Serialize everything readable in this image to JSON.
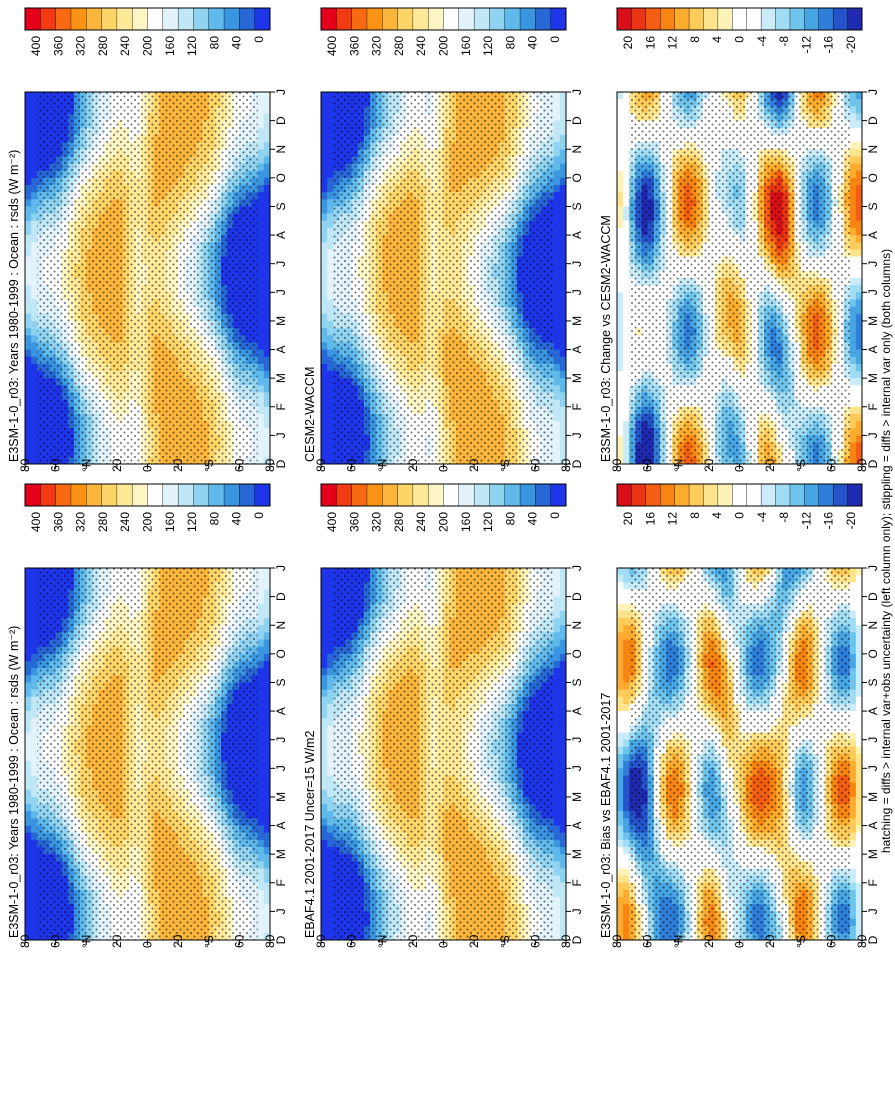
{
  "footnote": "hatching = diffs > internal var+obs uncertainty (left column only); stippling = diffs > internal var only (both columns)",
  "months": [
    "D",
    "J",
    "F",
    "M",
    "A",
    "M",
    "J",
    "J",
    "A",
    "S",
    "O",
    "N",
    "D",
    "J"
  ],
  "lat_ticks": [
    "80",
    "60",
    "°N",
    "20",
    "0",
    "20",
    "°S",
    "60",
    "80"
  ],
  "abs_cbar_ticks": [
    "400",
    "360",
    "320",
    "280",
    "240",
    "200",
    "160",
    "120",
    "80",
    "40",
    "0"
  ],
  "diff_cbar_ticks": [
    "20",
    "16",
    "12",
    "8",
    "4",
    "0",
    "-4",
    "-8",
    "-12",
    "-16",
    "-20"
  ],
  "abs_colors": [
    "#e5001b",
    "#f23a13",
    "#f86a12",
    "#fa9314",
    "#fbb53c",
    "#fcd468",
    "#fde998",
    "#fdf6c4",
    "#ffffff",
    "#e3f3fb",
    "#bfe7f6",
    "#8fd3f1",
    "#5fb9ea",
    "#3a96e0",
    "#2767d6",
    "#1e35ea"
  ],
  "diff_colors": [
    "#d70f18",
    "#ea3515",
    "#f45e12",
    "#f88512",
    "#fbac2e",
    "#fccb5a",
    "#fde38a",
    "#fdf2b8",
    "#ffffff",
    "#ffffff",
    "#c9ecf8",
    "#a0dcf3",
    "#6fc4ec",
    "#47a5e4",
    "#2f7ed9",
    "#2453cc",
    "#1f2ab0"
  ],
  "chart_data": [
    {
      "type": "heatmap",
      "panel": "left-top",
      "title": "E3SM-1-0_r03: Years 1980-1999 : Ocean : rsds (W m⁻²)",
      "x": [
        "D",
        "J",
        "F",
        "M",
        "A",
        "M",
        "J",
        "J",
        "A",
        "S",
        "O",
        "N",
        "D",
        "J"
      ],
      "y_labels": [
        "80",
        "60",
        "°N",
        "20",
        "0",
        "20",
        "°S",
        "60",
        "80"
      ],
      "zlim": [
        0,
        400
      ],
      "units": "W m⁻²"
    },
    {
      "type": "heatmap",
      "panel": "left-middle",
      "title": "EBAF4.1 2001-2017 Uncer=15 W/m2",
      "x": [
        "D",
        "J",
        "F",
        "M",
        "A",
        "M",
        "J",
        "J",
        "A",
        "S",
        "O",
        "N",
        "D",
        "J"
      ],
      "y_labels": [
        "80",
        "60",
        "°N",
        "20",
        "0",
        "20",
        "°S",
        "60",
        "80"
      ],
      "zlim": [
        0,
        400
      ],
      "units": "W m⁻²"
    },
    {
      "type": "heatmap",
      "panel": "left-bottom",
      "title": "E3SM-1-0_r03: Bias vs EBAF4.1 2001-2017",
      "x": [
        "D",
        "J",
        "F",
        "M",
        "A",
        "M",
        "J",
        "J",
        "A",
        "S",
        "O",
        "N",
        "D",
        "J"
      ],
      "y_labels": [
        "80",
        "60",
        "°N",
        "20",
        "0",
        "20",
        "°S",
        "60",
        "80"
      ],
      "zlim": [
        -20,
        20
      ],
      "units": "W m⁻²"
    },
    {
      "type": "heatmap",
      "panel": "right-top",
      "title": "E3SM-1-0_r03: Years 1980-1999 : Ocean : rsds (W m⁻²)",
      "x": [
        "D",
        "J",
        "F",
        "M",
        "A",
        "M",
        "J",
        "J",
        "A",
        "S",
        "O",
        "N",
        "D",
        "J"
      ],
      "y_labels": [
        "80",
        "60",
        "°N",
        "20",
        "0",
        "20",
        "°S",
        "60",
        "80"
      ],
      "zlim": [
        0,
        400
      ],
      "units": "W m⁻²"
    },
    {
      "type": "heatmap",
      "panel": "right-middle",
      "title": "CESM2-WACCM",
      "x": [
        "D",
        "J",
        "F",
        "M",
        "A",
        "M",
        "J",
        "J",
        "A",
        "S",
        "O",
        "N",
        "D",
        "J"
      ],
      "y_labels": [
        "80",
        "60",
        "°N",
        "20",
        "0",
        "20",
        "°S",
        "60",
        "80"
      ],
      "zlim": [
        0,
        400
      ],
      "units": "W m⁻²"
    },
    {
      "type": "heatmap",
      "panel": "right-bottom",
      "title": "E3SM-1-0_r03: Change vs CESM2-WACCM",
      "x": [
        "D",
        "J",
        "F",
        "M",
        "A",
        "M",
        "J",
        "J",
        "A",
        "S",
        "O",
        "N",
        "D",
        "J"
      ],
      "y_labels": [
        "80",
        "60",
        "°N",
        "20",
        "0",
        "20",
        "°S",
        "60",
        "80"
      ],
      "zlim": [
        -20,
        20
      ],
      "units": "W m⁻²"
    }
  ]
}
